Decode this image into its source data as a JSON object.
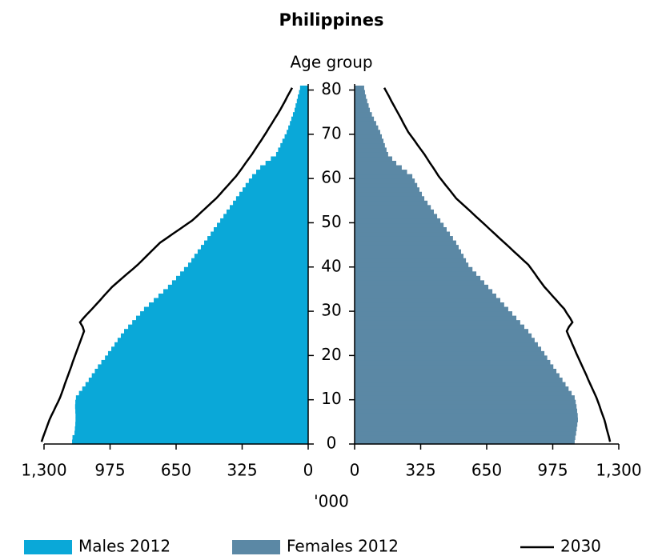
{
  "chart_data": {
    "type": "pyramid",
    "title": "Philippines",
    "y_label": "Age group",
    "x_label": "'000",
    "ylim": [
      0,
      81
    ],
    "yticks": [
      0,
      10,
      20,
      30,
      40,
      50,
      60,
      70,
      80
    ],
    "xlim": [
      0,
      1300
    ],
    "xticks": [
      {
        "value": 1300,
        "label": "1,300"
      },
      975,
      650,
      325,
      0
    ],
    "series": [
      {
        "name": "Males 2012",
        "color": "#0aa8d8",
        "side": "left",
        "values": [
          1162,
          1160,
          1150,
          1148,
          1146,
          1145,
          1145,
          1146,
          1147,
          1146,
          1143,
          1128,
          1112,
          1096,
          1080,
          1065,
          1050,
          1035,
          1018,
          1000,
          985,
          969,
          953,
          938,
          922,
          906,
          886,
          866,
          847,
          827,
          808,
          784,
          760,
          737,
          713,
          690,
          670,
          650,
          630,
          611,
          591,
          575,
          560,
          544,
          528,
          512,
          496,
          480,
          465,
          449,
          433,
          417,
          402,
          386,
          370,
          355,
          339,
          323,
          308,
          292,
          276,
          256,
          236,
          210,
          184,
          158,
          148,
          137,
          127,
          116,
          106,
          98,
          90,
          83,
          75,
          67,
          62,
          56,
          51,
          45,
          40
        ]
      },
      {
        "name": "Females 2012",
        "color": "#5b88a5",
        "side": "right",
        "values": [
          1083,
          1086,
          1090,
          1093,
          1096,
          1099,
          1098,
          1095,
          1092,
          1088,
          1083,
          1068,
          1053,
          1038,
          1023,
          1008,
          993,
          978,
          963,
          948,
          934,
          918,
          902,
          886,
          871,
          855,
          835,
          815,
          796,
          776,
          756,
          736,
          717,
          697,
          678,
          658,
          638,
          619,
          599,
          580,
          560,
          548,
          536,
          524,
          512,
          500,
          484,
          469,
          453,
          438,
          422,
          406,
          390,
          375,
          359,
          343,
          331,
          319,
          308,
          296,
          284,
          258,
          232,
          205,
          185,
          165,
          157,
          149,
          142,
          134,
          126,
          116,
          106,
          95,
          85,
          75,
          69,
          62,
          56,
          51,
          47
        ]
      },
      {
        "name": "2030",
        "color": "#000000",
        "style": "line",
        "values_left": [
          1312,
          1305,
          1297,
          1289,
          1281,
          1273,
          1263,
          1252,
          1242,
          1231,
          1221,
          1213,
          1205,
          1198,
          1190,
          1182,
          1174,
          1166,
          1159,
          1151,
          1143,
          1135,
          1127,
          1119,
          1111,
          1103,
          1110,
          1123,
          1105,
          1085,
          1064,
          1044,
          1024,
          1005,
          985,
          965,
          940,
          915,
          890,
          864,
          839,
          817,
          795,
          773,
          751,
          729,
          697,
          666,
          634,
          603,
          571,
          547,
          524,
          500,
          477,
          453,
          433,
          414,
          394,
          375,
          355,
          339,
          323,
          308,
          292,
          276,
          262,
          248,
          233,
          219,
          205,
          192,
          178,
          165,
          151,
          138,
          126,
          114,
          103,
          91,
          79
        ],
        "values_right": [
          1257,
          1252,
          1246,
          1240,
          1235,
          1229,
          1221,
          1213,
          1206,
          1198,
          1190,
          1180,
          1170,
          1160,
          1150,
          1141,
          1131,
          1121,
          1111,
          1101,
          1091,
          1082,
          1072,
          1063,
          1053,
          1044,
          1055,
          1072,
          1060,
          1045,
          1032,
          1012,
          993,
          973,
          954,
          934,
          918,
          902,
          887,
          871,
          855,
          831,
          808,
          784,
          761,
          737,
          713,
          690,
          666,
          643,
          619,
          595,
          572,
          548,
          524,
          500,
          483,
          466,
          448,
          431,
          414,
          400,
          386,
          371,
          357,
          343,
          327,
          311,
          296,
          280,
          264,
          252,
          240,
          229,
          217,
          205,
          193,
          181,
          170,
          158,
          146
        ]
      }
    ]
  }
}
